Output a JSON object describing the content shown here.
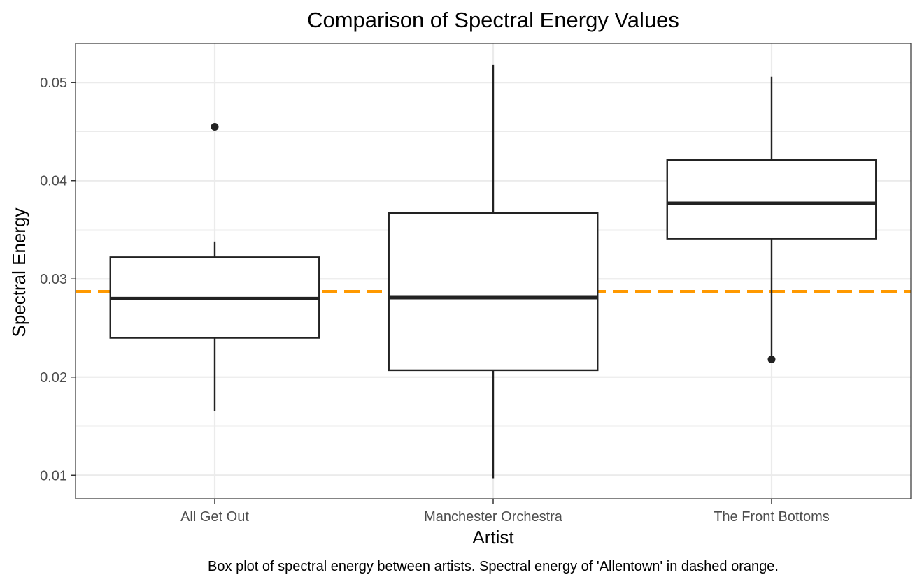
{
  "chart_data": {
    "type": "box",
    "title": "Comparison of Spectral Energy Values",
    "xlabel": "Artist",
    "ylabel": "Spectral Energy",
    "caption": "Box plot of spectral energy between artists. Spectral energy of 'Allentown' in dashed orange.",
    "categories": [
      "All Get Out",
      "Manchester Orchestra",
      "The Front Bottoms"
    ],
    "y_ticks": [
      "0.01",
      "0.02",
      "0.03",
      "0.04",
      "0.05"
    ],
    "ylim": [
      0.0076,
      0.054
    ],
    "grid": true,
    "boxes": [
      {
        "category": "All Get Out",
        "whisker_low": 0.0165,
        "q1": 0.024,
        "median": 0.028,
        "q3": 0.0322,
        "whisker_high": 0.0338,
        "outliers": [
          0.0455
        ]
      },
      {
        "category": "Manchester Orchestra",
        "whisker_low": 0.0097,
        "q1": 0.0207,
        "median": 0.0281,
        "q3": 0.0367,
        "whisker_high": 0.0518,
        "outliers": []
      },
      {
        "category": "The Front Bottoms",
        "whisker_low": 0.0218,
        "q1": 0.0341,
        "median": 0.0377,
        "q3": 0.0421,
        "whisker_high": 0.0506,
        "outliers": [
          0.0218
        ]
      }
    ],
    "reference_line": {
      "value": 0.0287,
      "style": "dashed",
      "color": "#ff9900"
    },
    "colors": {
      "box_stroke": "#222222",
      "box_fill": "#ffffff",
      "grid": "#ebebeb",
      "panel_border": "#333333"
    }
  }
}
